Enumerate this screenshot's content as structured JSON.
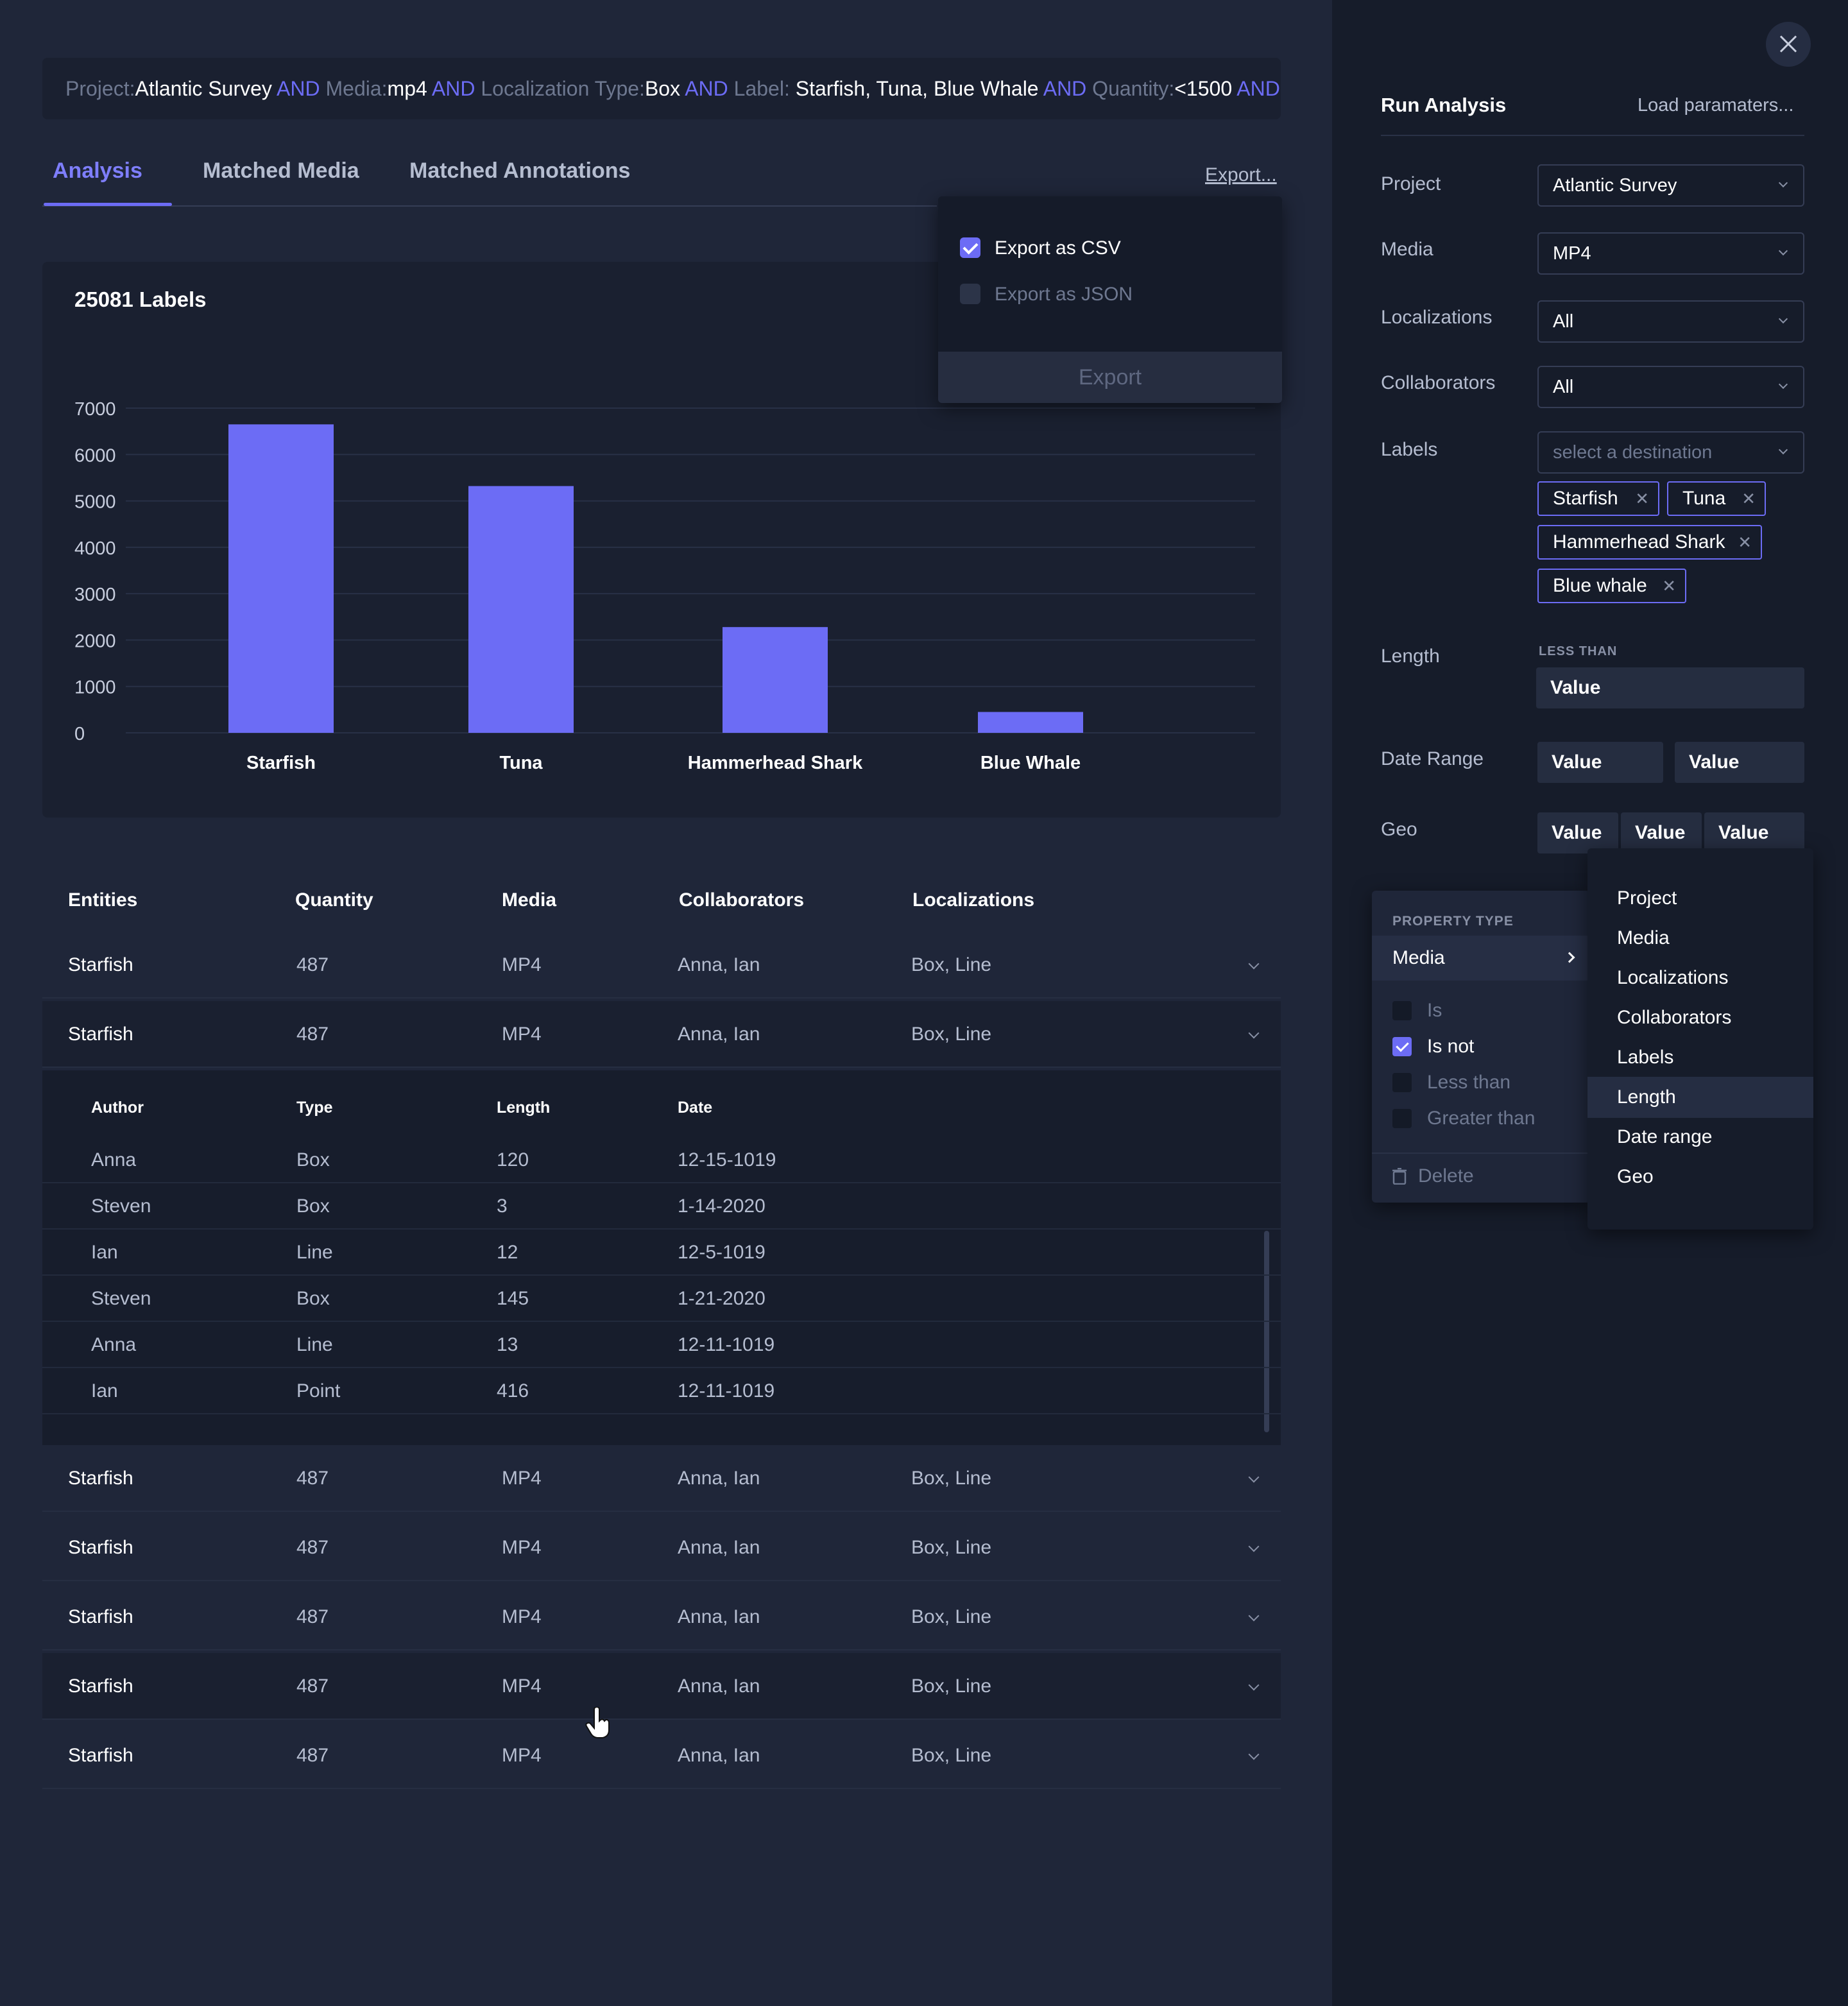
{
  "query": {
    "parts": [
      {
        "k": "Project:",
        "v": "Atlantic Survey"
      },
      {
        "op": " AND "
      },
      {
        "k": "Media:",
        "v": "mp4"
      },
      {
        "op": " AND "
      },
      {
        "k": "Localization Type:",
        "v": "Box"
      },
      {
        "op": " AND "
      },
      {
        "k": "Label: ",
        "v": "Starfish, Tuna, Blue Whale"
      },
      {
        "op": " AND "
      },
      {
        "k": "Quantity:",
        "v": "<1500"
      },
      {
        "op": " AND"
      }
    ]
  },
  "tabs": {
    "analysis": "Analysis",
    "matched_media": "Matched Media",
    "matched_annotations": "Matched Annotations"
  },
  "export": {
    "link": "Export...",
    "csv": "Export as CSV",
    "json": "Export as JSON",
    "button": "Export"
  },
  "chart_data": {
    "type": "bar",
    "title": "25081 Labels",
    "categories": [
      "Starfish",
      "Tuna",
      "Hammerhead Shark",
      "Blue Whale"
    ],
    "values": [
      6650,
      5320,
      2280,
      450
    ],
    "ylim": [
      0,
      7000
    ],
    "yticks": [
      0,
      1000,
      2000,
      3000,
      4000,
      5000,
      6000,
      7000
    ],
    "grid": true,
    "color": "#6c6cf5"
  },
  "table": {
    "headers": [
      "Entities",
      "Quantity",
      "Media",
      "Collaborators",
      "Localizations"
    ],
    "rows_top": [
      [
        "Starfish",
        "487",
        "MP4",
        "Anna, Ian",
        "Box, Line"
      ],
      [
        "Starfish",
        "487",
        "MP4",
        "Anna, Ian",
        "Box, Line"
      ]
    ],
    "sub_headers": [
      "Author",
      "Type",
      "Length",
      "Date"
    ],
    "sub_rows": [
      [
        "Anna",
        "Box",
        "120",
        "12-15-1019"
      ],
      [
        "Steven",
        "Box",
        "3",
        "1-14-2020"
      ],
      [
        "Ian",
        "Line",
        "12",
        "12-5-1019"
      ],
      [
        "Steven",
        "Box",
        "145",
        "1-21-2020"
      ],
      [
        "Anna",
        "Line",
        "13",
        "12-11-1019"
      ],
      [
        "Ian",
        "Point",
        "416",
        "12-11-1019"
      ]
    ],
    "rows_bottom": [
      [
        "Starfish",
        "487",
        "MP4",
        "Anna, Ian",
        "Box, Line"
      ],
      [
        "Starfish",
        "487",
        "MP4",
        "Anna, Ian",
        "Box, Line"
      ],
      [
        "Starfish",
        "487",
        "MP4",
        "Anna, Ian",
        "Box, Line"
      ],
      [
        "Starfish",
        "487",
        "MP4",
        "Anna, Ian",
        "Box, Line"
      ],
      [
        "Starfish",
        "487",
        "MP4",
        "Anna, Ian",
        "Box, Line"
      ]
    ]
  },
  "sidebar": {
    "title": "Run Analysis",
    "load": "Load paramaters...",
    "project_label": "Project",
    "project_value": "Atlantic Survey",
    "media_label": "Media",
    "media_value": "MP4",
    "localizations_label": "Localizations",
    "localizations_value": "All",
    "collaborators_label": "Collaborators",
    "collaborators_value": "All",
    "labels_label": "Labels",
    "labels_placeholder": "select a destination",
    "chips": [
      "Starfish",
      "Tuna",
      "Hammerhead Shark",
      "Blue whale"
    ],
    "length_label": "Length",
    "less_than": "LESS THAN",
    "value": "Value",
    "date_range_label": "Date Range",
    "geo_label": "Geo"
  },
  "property_popover": {
    "type_label": "PROPERTY TYPE",
    "selected": "Media",
    "options": [
      {
        "label": "Is",
        "checked": false
      },
      {
        "label": "Is not",
        "checked": true
      },
      {
        "label": "Less than",
        "checked": false
      },
      {
        "label": "Greater than",
        "checked": false
      }
    ],
    "delete": "Delete"
  },
  "property_list": {
    "items": [
      "Project",
      "Media",
      "Localizations",
      "Collaborators",
      "Labels",
      "Length",
      "Date range",
      "Geo"
    ],
    "selected": "Length"
  }
}
